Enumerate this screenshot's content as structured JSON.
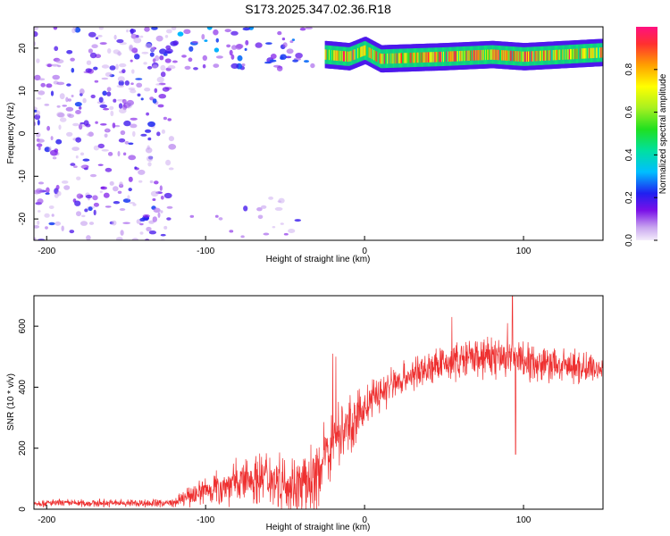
{
  "title": "S173.2025.347.02.36.R18",
  "chart_data": [
    {
      "type": "heatmap",
      "xlabel": "Height of straight line (km)",
      "ylabel": "Frequency (Hz)",
      "xlim": [
        -208,
        150
      ],
      "ylim": [
        -25,
        25
      ],
      "xticks": [
        -200,
        -100,
        0,
        100
      ],
      "yticks": [
        -20,
        -10,
        0,
        10,
        20
      ],
      "grid": false,
      "colorscale": "rainbow",
      "colorbar": {
        "label": "Normalized spectral amplitude",
        "range": [
          0,
          1
        ],
        "ticks": [
          "0.0",
          "0.2",
          "0.4",
          "0.6",
          "0.8"
        ],
        "tick_values": [
          0.0,
          0.2,
          0.4,
          0.6,
          0.8
        ]
      },
      "band": {
        "x_start": -25,
        "x_end": 150,
        "frequency_points": [
          [
            -25,
            18.5
          ],
          [
            -10,
            18
          ],
          [
            0,
            19.5
          ],
          [
            10,
            17.5
          ],
          [
            50,
            18
          ],
          [
            80,
            18.5
          ],
          [
            100,
            18
          ],
          [
            150,
            19
          ]
        ],
        "amplitude_range": [
          0.4,
          0.98
        ]
      },
      "noise_regions": [
        {
          "x": [
            -208,
            -120
          ],
          "y": [
            -25,
            25
          ],
          "density": 0.9,
          "amplitude": [
            0.05,
            0.25
          ]
        },
        {
          "x": [
            -120,
            -30
          ],
          "y": [
            15,
            25
          ],
          "density": 0.8,
          "amplitude": [
            0.1,
            0.35
          ]
        },
        {
          "x": [
            -110,
            -40
          ],
          "y": [
            -25,
            -15
          ],
          "density": 0.3,
          "amplitude": [
            0.05,
            0.2
          ]
        }
      ]
    },
    {
      "type": "line",
      "xlabel": "Height of straight line (km)",
      "ylabel": "SNR (10 * v/v)",
      "xlim": [
        -208,
        150
      ],
      "ylim": [
        0,
        700
      ],
      "xticks": [
        -200,
        -100,
        0,
        100
      ],
      "yticks": [
        0,
        200,
        400,
        600
      ],
      "grid": false,
      "series": [
        {
          "color": "#ee3030",
          "envelope": [
            [
              -208,
              20
            ],
            [
              -120,
              20
            ],
            [
              -105,
              55
            ],
            [
              -80,
              90
            ],
            [
              -60,
              110
            ],
            [
              -40,
              70
            ],
            [
              -30,
              110
            ],
            [
              -20,
              230
            ],
            [
              -5,
              300
            ],
            [
              5,
              360
            ],
            [
              20,
              420
            ],
            [
              40,
              460
            ],
            [
              60,
              490
            ],
            [
              80,
              500
            ],
            [
              100,
              490
            ],
            [
              120,
              470
            ],
            [
              150,
              460
            ]
          ],
          "noise_envelope": [
            [
              -208,
              12
            ],
            [
              -120,
              14
            ],
            [
              -100,
              50
            ],
            [
              -60,
              90
            ],
            [
              -35,
              100
            ],
            [
              -20,
              110
            ],
            [
              0,
              70
            ],
            [
              30,
              55
            ],
            [
              60,
              60
            ],
            [
              90,
              75
            ],
            [
              110,
              60
            ],
            [
              150,
              50
            ]
          ],
          "spikes": [
            [
              -20,
              510
            ],
            [
              -18,
              500
            ],
            [
              55,
              630
            ],
            [
              93,
              700
            ],
            [
              90,
              610
            ],
            [
              95,
              180
            ]
          ]
        }
      ]
    }
  ]
}
